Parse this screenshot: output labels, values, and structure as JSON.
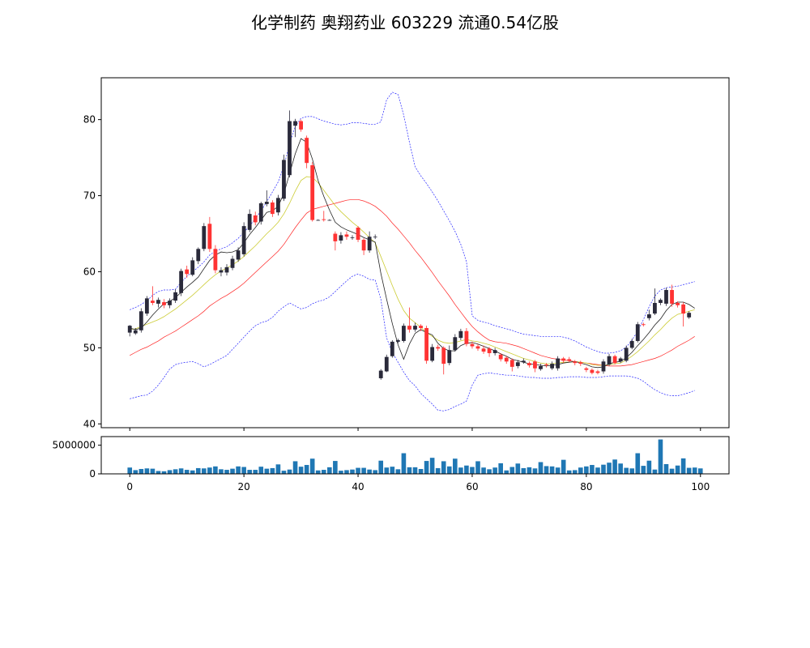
{
  "title": "化学制药 奥翔药业 603229 流通0.54亿股",
  "chart_data": {
    "type": "candlestick",
    "x_ticks": [
      0,
      20,
      40,
      60,
      80,
      100
    ],
    "price_axis": {
      "ylim": [
        39.5,
        85.5
      ],
      "ticks": [
        40,
        50,
        60,
        70,
        80
      ]
    },
    "volume_axis": {
      "ylim": [
        0,
        6500000
      ],
      "ticks": [
        0,
        5000000
      ]
    },
    "colors": {
      "up": "#2a2a3a",
      "down": "#ff3333",
      "ma_short": "#222222",
      "ma_long": "#cccc33",
      "boll_mid": "#ff2222",
      "boll_band": "#2222ff",
      "volume": "#1f77b4"
    },
    "candles": [
      {
        "o": 52.0,
        "c": 52.9,
        "h": 53.0,
        "l": 51.5
      },
      {
        "o": 51.9,
        "c": 52.3,
        "h": 52.6,
        "l": 51.7
      },
      {
        "o": 52.3,
        "c": 54.8,
        "h": 55.2,
        "l": 52.0
      },
      {
        "o": 54.5,
        "c": 56.5,
        "h": 56.8,
        "l": 54.2
      },
      {
        "o": 56.2,
        "c": 55.9,
        "h": 58.1,
        "l": 55.6
      },
      {
        "o": 55.8,
        "c": 56.3,
        "h": 56.6,
        "l": 55.3
      },
      {
        "o": 56.0,
        "c": 55.6,
        "h": 56.4,
        "l": 55.2
      },
      {
        "o": 55.6,
        "c": 56.2,
        "h": 56.5,
        "l": 55.2
      },
      {
        "o": 56.2,
        "c": 57.3,
        "h": 57.7,
        "l": 55.9
      },
      {
        "o": 57.2,
        "c": 60.1,
        "h": 60.4,
        "l": 56.8
      },
      {
        "o": 60.3,
        "c": 59.7,
        "h": 60.8,
        "l": 59.2
      },
      {
        "o": 59.6,
        "c": 61.5,
        "h": 61.9,
        "l": 59.4
      },
      {
        "o": 61.4,
        "c": 63.0,
        "h": 63.2,
        "l": 61.0
      },
      {
        "o": 63.0,
        "c": 66.0,
        "h": 66.4,
        "l": 62.7
      },
      {
        "o": 66.3,
        "c": 63.0,
        "h": 67.2,
        "l": 62.6
      },
      {
        "o": 63.0,
        "c": 60.2,
        "h": 63.5,
        "l": 59.8
      },
      {
        "o": 59.9,
        "c": 60.2,
        "h": 60.6,
        "l": 59.4
      },
      {
        "o": 59.9,
        "c": 60.6,
        "h": 61.0,
        "l": 59.5
      },
      {
        "o": 60.5,
        "c": 61.7,
        "h": 62.1,
        "l": 60.2
      },
      {
        "o": 61.6,
        "c": 62.8,
        "h": 63.2,
        "l": 61.3
      },
      {
        "o": 62.3,
        "c": 66.0,
        "h": 66.5,
        "l": 62.0
      },
      {
        "o": 65.5,
        "c": 67.6,
        "h": 68.2,
        "l": 65.2
      },
      {
        "o": 67.4,
        "c": 66.5,
        "h": 67.9,
        "l": 66.1
      },
      {
        "o": 66.6,
        "c": 69.0,
        "h": 69.2,
        "l": 66.2
      },
      {
        "o": 68.9,
        "c": 69.2,
        "h": 70.7,
        "l": 68.6
      },
      {
        "o": 69.1,
        "c": 67.6,
        "h": 69.4,
        "l": 67.2
      },
      {
        "o": 67.8,
        "c": 69.7,
        "h": 70.1,
        "l": 67.4
      },
      {
        "o": 69.6,
        "c": 74.7,
        "h": 75.4,
        "l": 69.3
      },
      {
        "o": 72.7,
        "c": 79.8,
        "h": 81.2,
        "l": 72.4
      },
      {
        "o": 79.2,
        "c": 79.8,
        "h": 80.1,
        "l": 77.7
      },
      {
        "o": 79.8,
        "c": 78.7,
        "h": 80.0,
        "l": 78.4
      },
      {
        "o": 77.6,
        "c": 74.3,
        "h": 77.9,
        "l": 73.6
      },
      {
        "o": 74.0,
        "c": 66.8,
        "h": 74.4,
        "l": 66.6
      },
      {
        "o": 66.8,
        "c": 66.8,
        "h": 66.9,
        "l": 66.7
      },
      {
        "o": 66.9,
        "c": 66.8,
        "h": 68.0,
        "l": 66.6
      },
      {
        "o": 66.8,
        "c": 66.8,
        "h": 66.9,
        "l": 66.7
      },
      {
        "o": 65.0,
        "c": 64.0,
        "h": 65.3,
        "l": 62.8
      },
      {
        "o": 64.1,
        "c": 64.8,
        "h": 65.2,
        "l": 63.7
      },
      {
        "o": 64.9,
        "c": 64.6,
        "h": 65.3,
        "l": 64.2
      },
      {
        "o": 64.5,
        "c": 64.5,
        "h": 64.8,
        "l": 64.2
      },
      {
        "o": 65.8,
        "c": 64.2,
        "h": 66.0,
        "l": 63.9
      },
      {
        "o": 64.2,
        "c": 62.8,
        "h": 64.4,
        "l": 62.2
      },
      {
        "o": 62.8,
        "c": 64.6,
        "h": 65.3,
        "l": 62.5
      },
      {
        "o": 64.6,
        "c": 64.6,
        "h": 64.9,
        "l": 64.3
      },
      {
        "o": 46.0,
        "c": 47.0,
        "h": 47.2,
        "l": 45.8
      },
      {
        "o": 46.9,
        "c": 48.8,
        "h": 49.1,
        "l": 46.8
      },
      {
        "o": 48.9,
        "c": 50.8,
        "h": 51.0,
        "l": 48.7
      },
      {
        "o": 50.8,
        "c": 51.0,
        "h": 51.2,
        "l": 50.6
      },
      {
        "o": 50.9,
        "c": 52.9,
        "h": 53.2,
        "l": 50.7
      },
      {
        "o": 52.9,
        "c": 52.4,
        "h": 55.3,
        "l": 52.0
      },
      {
        "o": 52.4,
        "c": 52.9,
        "h": 53.3,
        "l": 52.1
      },
      {
        "o": 52.9,
        "c": 52.6,
        "h": 53.1,
        "l": 52.2
      },
      {
        "o": 52.6,
        "c": 48.3,
        "h": 52.9,
        "l": 47.9
      },
      {
        "o": 48.3,
        "c": 50.1,
        "h": 50.5,
        "l": 48.1
      },
      {
        "o": 50.1,
        "c": 49.9,
        "h": 50.4,
        "l": 49.6
      },
      {
        "o": 50.0,
        "c": 47.9,
        "h": 50.2,
        "l": 46.5
      },
      {
        "o": 48.0,
        "c": 49.7,
        "h": 50.3,
        "l": 47.7
      },
      {
        "o": 49.7,
        "c": 51.4,
        "h": 51.8,
        "l": 49.5
      },
      {
        "o": 51.3,
        "c": 52.2,
        "h": 52.5,
        "l": 51.0
      },
      {
        "o": 52.2,
        "c": 50.5,
        "h": 52.6,
        "l": 50.2
      },
      {
        "o": 50.5,
        "c": 50.2,
        "h": 50.8,
        "l": 49.9
      },
      {
        "o": 50.2,
        "c": 49.9,
        "h": 50.5,
        "l": 49.6
      },
      {
        "o": 49.9,
        "c": 49.5,
        "h": 50.3,
        "l": 49.2
      },
      {
        "o": 49.9,
        "c": 49.3,
        "h": 50.1,
        "l": 48.8
      },
      {
        "o": 49.3,
        "c": 49.7,
        "h": 50.0,
        "l": 49.0
      },
      {
        "o": 49.1,
        "c": 48.5,
        "h": 49.3,
        "l": 48.2
      },
      {
        "o": 48.7,
        "c": 48.2,
        "h": 48.9,
        "l": 47.9
      },
      {
        "o": 48.4,
        "c": 47.5,
        "h": 48.6,
        "l": 46.9
      },
      {
        "o": 47.6,
        "c": 48.1,
        "h": 48.4,
        "l": 47.3
      },
      {
        "o": 48.1,
        "c": 48.3,
        "h": 48.6,
        "l": 47.9
      },
      {
        "o": 48.0,
        "c": 47.7,
        "h": 48.2,
        "l": 47.4
      },
      {
        "o": 48.2,
        "c": 47.3,
        "h": 48.4,
        "l": 46.8
      },
      {
        "o": 47.2,
        "c": 47.6,
        "h": 47.9,
        "l": 47.0
      },
      {
        "o": 47.8,
        "c": 47.7,
        "h": 48.0,
        "l": 47.4
      },
      {
        "o": 47.3,
        "c": 47.9,
        "h": 48.2,
        "l": 47.1
      },
      {
        "o": 47.3,
        "c": 48.6,
        "h": 48.9,
        "l": 47.0
      },
      {
        "o": 48.6,
        "c": 48.3,
        "h": 48.8,
        "l": 48.0
      },
      {
        "o": 48.5,
        "c": 48.3,
        "h": 48.8,
        "l": 48.1
      },
      {
        "o": 48.2,
        "c": 48.0,
        "h": 48.4,
        "l": 47.7
      },
      {
        "o": 48.1,
        "c": 47.9,
        "h": 48.3,
        "l": 47.6
      },
      {
        "o": 47.3,
        "c": 47.1,
        "h": 47.5,
        "l": 46.8
      },
      {
        "o": 47.1,
        "c": 46.7,
        "h": 47.3,
        "l": 46.5
      },
      {
        "o": 46.9,
        "c": 46.7,
        "h": 47.1,
        "l": 46.5
      },
      {
        "o": 46.9,
        "c": 48.2,
        "h": 48.5,
        "l": 46.6
      },
      {
        "o": 47.8,
        "c": 48.9,
        "h": 49.2,
        "l": 47.6
      },
      {
        "o": 48.9,
        "c": 48.0,
        "h": 49.1,
        "l": 47.8
      },
      {
        "o": 48.2,
        "c": 48.6,
        "h": 48.8,
        "l": 48.0
      },
      {
        "o": 48.3,
        "c": 50.0,
        "h": 50.3,
        "l": 48.1
      },
      {
        "o": 50.0,
        "c": 50.9,
        "h": 51.2,
        "l": 49.8
      },
      {
        "o": 50.9,
        "c": 53.1,
        "h": 53.4,
        "l": 50.7
      },
      {
        "o": 53.1,
        "c": 53.0,
        "h": 53.3,
        "l": 52.8
      },
      {
        "o": 53.9,
        "c": 54.4,
        "h": 55.0,
        "l": 53.6
      },
      {
        "o": 54.5,
        "c": 55.9,
        "h": 57.8,
        "l": 54.3
      },
      {
        "o": 55.9,
        "c": 56.3,
        "h": 56.5,
        "l": 55.6
      },
      {
        "o": 55.8,
        "c": 57.6,
        "h": 57.9,
        "l": 55.5
      },
      {
        "o": 57.6,
        "c": 55.8,
        "h": 58.3,
        "l": 55.4
      },
      {
        "o": 55.9,
        "c": 55.6,
        "h": 56.1,
        "l": 55.3
      },
      {
        "o": 55.7,
        "c": 54.5,
        "h": 56.0,
        "l": 52.8
      },
      {
        "o": 54.0,
        "c": 54.6,
        "h": 54.8,
        "l": 53.8
      }
    ],
    "volume": [
      1100000,
      650000,
      850000,
      950000,
      900000,
      500000,
      450000,
      650000,
      800000,
      950000,
      700000,
      600000,
      1000000,
      950000,
      1100000,
      1300000,
      800000,
      700000,
      900000,
      1300000,
      1200000,
      700000,
      700000,
      1250000,
      900000,
      1000000,
      1650000,
      550000,
      750000,
      2200000,
      1250000,
      1550000,
      2650000,
      600000,
      700000,
      1150000,
      2250000,
      550000,
      650000,
      750000,
      1050000,
      1050000,
      750000,
      650000,
      2300000,
      1100000,
      1250000,
      800000,
      3600000,
      1150000,
      1150000,
      850000,
      2250000,
      2800000,
      1000000,
      2200000,
      1300000,
      2650000,
      1100000,
      1450000,
      1200000,
      2200000,
      1100000,
      800000,
      1100000,
      1850000,
      600000,
      1200000,
      1800000,
      1000000,
      1150000,
      950000,
      2050000,
      1350000,
      1300000,
      1100000,
      2450000,
      600000,
      650000,
      1100000,
      1300000,
      1550000,
      1100000,
      1600000,
      1950000,
      2500000,
      1800000,
      1050000,
      950000,
      3600000,
      1400000,
      2300000,
      750000,
      6000000,
      1700000,
      900000,
      1450000,
      2700000,
      1050000,
      1100000,
      950000
    ],
    "ma_short": [
      52.6,
      52.4,
      52.6,
      53.4,
      54.3,
      55.1,
      55.8,
      56.1,
      56.6,
      57.3,
      58.0,
      58.6,
      59.3,
      60.4,
      61.5,
      62.2,
      62.6,
      62.5,
      62.6,
      62.9,
      63.8,
      64.9,
      65.8,
      66.8,
      67.8,
      68.0,
      68.6,
      70.3,
      72.9,
      75.5,
      77.5,
      77.0,
      74.8,
      72.0,
      69.9,
      68.1,
      66.5,
      65.9,
      65.5,
      65.2,
      64.9,
      64.5,
      64.2,
      63.9,
      59.8,
      56.4,
      53.2,
      50.4,
      48.5,
      50.5,
      51.9,
      52.4,
      52.0,
      51.7,
      50.6,
      49.9,
      49.6,
      49.6,
      50.3,
      50.6,
      50.7,
      50.5,
      50.2,
      49.9,
      49.6,
      49.2,
      48.9,
      48.5,
      48.3,
      48.1,
      47.9,
      47.8,
      47.7,
      47.6,
      47.7,
      47.8,
      48.0,
      48.1,
      48.2,
      48.0,
      47.8,
      47.5,
      47.4,
      47.5,
      47.9,
      48.1,
      48.2,
      48.7,
      49.4,
      50.3,
      51.1,
      52.0,
      53.0,
      53.8,
      54.9,
      55.7,
      56.0,
      56.0,
      55.7,
      55.2
    ],
    "ma_long": [
      52.4,
      52.5,
      52.8,
      53.1,
      53.4,
      53.7,
      54.1,
      54.6,
      55.1,
      55.7,
      56.3,
      56.9,
      57.6,
      58.3,
      59.0,
      59.6,
      60.1,
      60.5,
      60.9,
      61.4,
      62.0,
      62.7,
      63.4,
      64.2,
      65.0,
      65.7,
      66.5,
      67.6,
      69.0,
      70.6,
      72.0,
      72.5,
      72.4,
      71.7,
      70.7,
      69.7,
      68.7,
      67.9,
      67.2,
      66.5,
      65.9,
      65.2,
      64.5,
      63.8,
      62.0,
      60.1,
      58.2,
      56.4,
      54.9,
      53.9,
      53.3,
      52.7,
      52.0,
      51.5,
      51.0,
      50.7,
      50.6,
      50.7,
      50.9,
      51.1,
      50.9,
      50.8,
      50.6,
      50.4,
      50.1,
      49.8,
      49.5,
      49.2,
      48.9,
      48.6,
      48.4,
      48.2,
      48.0,
      47.9,
      47.9,
      48.0,
      48.1,
      48.1,
      48.2,
      48.1,
      48.0,
      47.8,
      47.7,
      47.7,
      47.8,
      47.9,
      48.0,
      48.4,
      48.9,
      49.5,
      50.2,
      50.9,
      51.7,
      52.4,
      53.2,
      53.9,
      54.4,
      54.6,
      54.8,
      55.0
    ],
    "boll_mid": [
      49.0,
      49.4,
      49.8,
      50.1,
      50.5,
      50.9,
      51.4,
      51.8,
      52.2,
      52.7,
      53.2,
      53.7,
      54.2,
      54.8,
      55.5,
      56.0,
      56.5,
      56.9,
      57.4,
      57.9,
      58.5,
      59.2,
      59.9,
      60.6,
      61.3,
      62.0,
      62.7,
      63.6,
      64.7,
      65.8,
      66.8,
      67.7,
      68.2,
      68.4,
      68.6,
      68.8,
      69.0,
      69.2,
      69.4,
      69.5,
      69.5,
      69.3,
      69.0,
      68.6,
      68.0,
      67.3,
      66.4,
      65.6,
      64.7,
      63.8,
      62.8,
      61.9,
      60.9,
      59.9,
      58.8,
      57.8,
      56.8,
      55.7,
      54.7,
      53.7,
      52.8,
      52.1,
      51.5,
      51.0,
      50.8,
      50.7,
      50.6,
      50.4,
      50.2,
      49.9,
      49.6,
      49.3,
      49.0,
      48.8,
      48.6,
      48.5,
      48.4,
      48.3,
      48.2,
      48.1,
      48.0,
      47.9,
      47.8,
      47.7,
      47.6,
      47.6,
      47.6,
      47.7,
      47.8,
      48.0,
      48.2,
      48.4,
      48.6,
      48.9,
      49.3,
      49.7,
      50.2,
      50.6,
      51.0,
      51.5
    ],
    "boll_upper": [
      55.0,
      55.3,
      55.7,
      56.2,
      56.9,
      57.4,
      57.6,
      57.6,
      57.7,
      58.6,
      59.4,
      60.0,
      60.6,
      61.3,
      62.2,
      62.7,
      63.0,
      63.3,
      63.8,
      64.4,
      65.2,
      66.0,
      67.0,
      68.0,
      69.2,
      70.5,
      71.8,
      73.9,
      76.8,
      79.1,
      80.2,
      80.4,
      80.4,
      80.1,
      79.8,
      79.6,
      79.4,
      79.3,
      79.4,
      79.6,
      79.6,
      79.5,
      79.4,
      79.4,
      79.7,
      82.6,
      83.6,
      83.3,
      80.6,
      77.0,
      73.8,
      72.6,
      71.6,
      70.5,
      69.3,
      68.0,
      66.7,
      65.3,
      63.6,
      61.3,
      54.2,
      53.6,
      53.4,
      53.2,
      52.9,
      52.7,
      52.5,
      52.3,
      52.0,
      51.8,
      51.7,
      51.6,
      51.5,
      51.5,
      51.5,
      51.5,
      51.4,
      51.2,
      50.9,
      50.5,
      50.1,
      49.8,
      49.5,
      49.3,
      49.3,
      49.4,
      49.6,
      50.1,
      51.0,
      52.2,
      53.7,
      55.4,
      56.8,
      57.6,
      57.9,
      58.0,
      58.1,
      58.3,
      58.5,
      58.7
    ],
    "boll_lower": [
      43.3,
      43.5,
      43.7,
      43.8,
      44.3,
      45.1,
      46.1,
      47.2,
      47.8,
      48.0,
      48.1,
      48.2,
      47.9,
      47.5,
      47.8,
      48.2,
      48.6,
      49.0,
      49.8,
      50.6,
      51.4,
      52.2,
      52.9,
      53.3,
      53.5,
      54.0,
      54.8,
      55.4,
      55.9,
      55.5,
      55.1,
      55.3,
      55.8,
      56.1,
      56.3,
      56.7,
      57.4,
      58.1,
      58.8,
      59.4,
      59.7,
      59.4,
      59.0,
      58.9,
      56.4,
      51.3,
      49.4,
      48.1,
      46.8,
      45.7,
      45.0,
      44.0,
      43.3,
      42.6,
      41.8,
      41.7,
      41.9,
      42.3,
      42.6,
      43.0,
      45.1,
      46.4,
      46.6,
      46.7,
      46.6,
      46.5,
      46.4,
      46.4,
      46.3,
      46.2,
      46.1,
      46.1,
      46.0,
      46.0,
      46.0,
      46.1,
      46.1,
      46.2,
      46.2,
      46.2,
      46.1,
      46.1,
      46.1,
      46.2,
      46.3,
      46.3,
      46.3,
      46.3,
      46.2,
      46.0,
      45.6,
      45.0,
      44.5,
      44.1,
      43.8,
      43.7,
      43.7,
      43.9,
      44.1,
      44.4
    ]
  }
}
